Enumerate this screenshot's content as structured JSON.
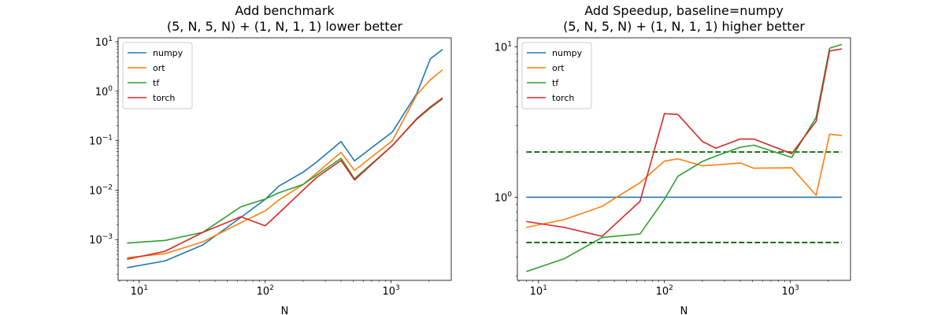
{
  "chart_data": [
    {
      "type": "line",
      "title": "Add benchmark\n(5, N, 5, N) + (1, N, 1, 1) lower better",
      "xlabel": "N",
      "ylabel": "",
      "xscale": "log",
      "yscale": "log",
      "xlim": [
        6.8,
        3000
      ],
      "ylim": [
        0.00015,
        12
      ],
      "xticks": [
        {
          "value": 10,
          "base": "10",
          "exp": "1"
        },
        {
          "value": 100,
          "base": "10",
          "exp": "2"
        },
        {
          "value": 1000,
          "base": "10",
          "exp": "3"
        }
      ],
      "yticks": [
        {
          "value": 0.001,
          "base": "10",
          "exp": "−3"
        },
        {
          "value": 0.01,
          "base": "10",
          "exp": "−2"
        },
        {
          "value": 0.1,
          "base": "10",
          "exp": "−1"
        },
        {
          "value": 1,
          "base": "10",
          "exp": "0"
        },
        {
          "value": 10,
          "base": "10",
          "exp": "1"
        }
      ],
      "legend": "top-left",
      "grid": false,
      "x": [
        8,
        16,
        32,
        64,
        100,
        128,
        200,
        256,
        400,
        512,
        1024,
        1600,
        2048,
        2560
      ],
      "series": [
        {
          "name": "numpy",
          "color": "#1f77b4",
          "values": [
            0.00027,
            0.00037,
            0.00078,
            0.0028,
            0.0065,
            0.012,
            0.023,
            0.037,
            0.096,
            0.039,
            0.15,
            0.9,
            4.5,
            7.0
          ]
        },
        {
          "name": "ort",
          "color": "#ff7f0e",
          "values": [
            0.00043,
            0.00052,
            0.0009,
            0.0022,
            0.0038,
            0.0063,
            0.013,
            0.022,
            0.058,
            0.025,
            0.1,
            0.85,
            1.7,
            2.7
          ]
        },
        {
          "name": "tf",
          "color": "#2ca02c",
          "values": [
            0.00085,
            0.00096,
            0.0014,
            0.0046,
            0.0066,
            0.0088,
            0.013,
            0.02,
            0.044,
            0.017,
            0.08,
            0.27,
            0.46,
            0.7
          ]
        },
        {
          "name": "torch",
          "color": "#d62728",
          "values": [
            0.0004,
            0.00058,
            0.0014,
            0.0029,
            0.0019,
            0.0034,
            0.01,
            0.018,
            0.04,
            0.016,
            0.08,
            0.28,
            0.48,
            0.73
          ]
        }
      ]
    },
    {
      "type": "line",
      "title": "Add Speedup, baseline=numpy\n(5, N, 5, N) + (1, N, 1, 1) higher better",
      "xlabel": "N",
      "ylabel": "",
      "xscale": "log",
      "yscale": "log",
      "xlim": [
        6.8,
        3000
      ],
      "ylim": [
        0.28,
        11.5
      ],
      "xticks": [
        {
          "value": 10,
          "base": "10",
          "exp": "1"
        },
        {
          "value": 100,
          "base": "10",
          "exp": "2"
        },
        {
          "value": 1000,
          "base": "10",
          "exp": "3"
        }
      ],
      "yticks": [
        {
          "value": 1,
          "base": "10",
          "exp": "0"
        },
        {
          "value": 10,
          "base": "10",
          "exp": "1"
        }
      ],
      "legend": "top-left",
      "grid": false,
      "x": [
        8,
        16,
        32,
        64,
        100,
        128,
        200,
        256,
        400,
        512,
        1024,
        1600,
        2048,
        2560
      ],
      "series": [
        {
          "name": "numpy",
          "color": "#1f77b4",
          "values": [
            1,
            1,
            1,
            1,
            1,
            1,
            1,
            1,
            1,
            1,
            1,
            1,
            1,
            1
          ]
        },
        {
          "name": "ort",
          "color": "#ff7f0e",
          "values": [
            0.63,
            0.71,
            0.87,
            1.25,
            1.74,
            1.8,
            1.62,
            1.64,
            1.69,
            1.56,
            1.57,
            1.03,
            2.63,
            2.57
          ]
        },
        {
          "name": "tf",
          "color": "#2ca02c",
          "values": [
            0.32,
            0.39,
            0.54,
            0.57,
            0.97,
            1.38,
            1.73,
            1.88,
            2.15,
            2.22,
            1.84,
            3.4,
            9.8,
            10.4
          ]
        },
        {
          "name": "torch",
          "color": "#d62728",
          "values": [
            0.69,
            0.63,
            0.55,
            0.94,
            3.6,
            3.55,
            2.35,
            2.12,
            2.44,
            2.44,
            1.95,
            3.2,
            9.4,
            9.7
          ]
        }
      ],
      "reference_lines": [
        {
          "value": 2,
          "color": "#006400",
          "style": "dashed"
        },
        {
          "value": 0.5,
          "color": "#006400",
          "style": "dashed"
        }
      ]
    }
  ]
}
